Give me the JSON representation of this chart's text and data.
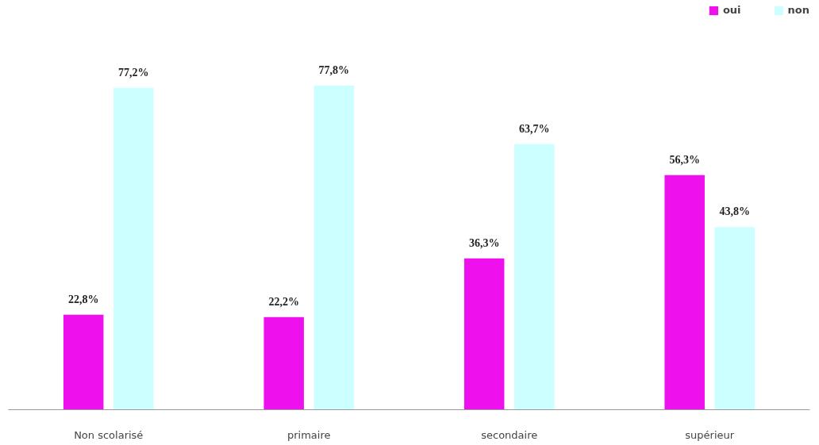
{
  "chart_data": {
    "type": "bar",
    "categories": [
      "Non scolarisé",
      "primaire",
      "secondaire",
      "supérieur"
    ],
    "series": [
      {
        "name": "oui",
        "color": "#ee11ee",
        "values": [
          22.8,
          22.2,
          36.3,
          56.3
        ],
        "value_labels": [
          "22,8%",
          "22,2%",
          "36,3%",
          "56,3%"
        ]
      },
      {
        "name": "non",
        "color": "#ccffff",
        "values": [
          77.2,
          77.8,
          63.7,
          43.8
        ],
        "value_labels": [
          "77,2%",
          "77,8%",
          "63,7%",
          "43,8%"
        ]
      }
    ],
    "legend": "top right"
  }
}
